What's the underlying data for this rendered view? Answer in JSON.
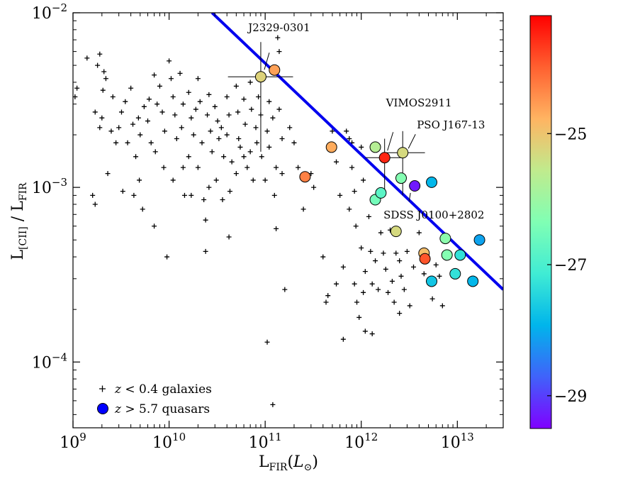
{
  "chart_data": {
    "type": "scatter",
    "xlabel": "L",
    "xlabel_sub": "FIR",
    "xlabel_unit_open": "(",
    "xlabel_unit": "L",
    "xlabel_unit_sub": "⊙",
    "xlabel_unit_close": ")",
    "ylabel": "L",
    "ylabel_sub": "[CII]",
    "ylabel_sep": " / L",
    "ylabel_sub2": "FIR",
    "x_scale": "log",
    "y_scale": "log",
    "xlim": [
      1000000000,
      30000000000000
    ],
    "ylim": [
      4.2e-05,
      0.01
    ],
    "x_ticks": [
      {
        "value": 1000000000,
        "base": "10",
        "exp": "9"
      },
      {
        "value": 10000000000,
        "base": "10",
        "exp": "10"
      },
      {
        "value": 100000000000,
        "base": "10",
        "exp": "11"
      },
      {
        "value": 1000000000000,
        "base": "10",
        "exp": "12"
      },
      {
        "value": 10000000000000,
        "base": "10",
        "exp": "13"
      }
    ],
    "y_ticks": [
      {
        "value": 0.0001,
        "base": "10",
        "exp": "−4"
      },
      {
        "value": 0.001,
        "base": "10",
        "exp": "−3"
      },
      {
        "value": 0.01,
        "base": "10",
        "exp": "−2"
      }
    ],
    "fit_line": {
      "color": "#0000ee",
      "points": [
        [
          28000000000,
          0.01
        ],
        [
          30000000000000,
          0.00026
        ]
      ]
    },
    "colorbar": {
      "min": -29.5,
      "max": -23.2,
      "ticks": [
        {
          "value": -25,
          "label": "−25"
        },
        {
          "value": -27,
          "label": "−27"
        },
        {
          "value": -29,
          "label": "−29"
        }
      ]
    },
    "legend": {
      "position": "lower-left",
      "entries": [
        {
          "marker": "plus",
          "z": "z",
          "rel": " < 0.4 galaxies"
        },
        {
          "marker": "circle",
          "z": "z",
          "rel": " > 5.7 quasars",
          "color": "#0000ff"
        }
      ]
    },
    "series": [
      {
        "name": "z < 0.4 galaxies",
        "marker": "plus",
        "points": [
          [
            1050000000.0,
            0.0033
          ],
          [
            1100000000.0,
            0.0037
          ],
          [
            1400000000.0,
            0.0055
          ],
          [
            1900000000.0,
            0.0058
          ],
          [
            1800000000.0,
            0.005
          ],
          [
            2100000000.0,
            0.0046
          ],
          [
            2200000000.0,
            0.0042
          ],
          [
            2050000000.0,
            0.0036
          ],
          [
            2000000000.0,
            0.0025
          ],
          [
            1900000000.0,
            0.0022
          ],
          [
            1700000000.0,
            0.0027
          ],
          [
            1600000000.0,
            0.0009
          ],
          [
            1700000000.0,
            0.0008
          ],
          [
            2600000000.0,
            0.0033
          ],
          [
            2500000000.0,
            0.0021
          ],
          [
            2800000000.0,
            0.0018
          ],
          [
            2300000000.0,
            0.0012
          ],
          [
            3200000000.0,
            0.0027
          ],
          [
            3000000000.0,
            0.0022
          ],
          [
            3300000000.0,
            0.00095
          ],
          [
            3500000000.0,
            0.0031
          ],
          [
            3700000000.0,
            0.0018
          ],
          [
            4000000000.0,
            0.0037
          ],
          [
            4200000000.0,
            0.0023
          ],
          [
            4500000000.0,
            0.0015
          ],
          [
            4300000000.0,
            0.0009
          ],
          [
            4800000000.0,
            0.0025
          ],
          [
            5500000000.0,
            0.0029
          ],
          [
            5000000000.0,
            0.002
          ],
          [
            4900000000.0,
            0.0011
          ],
          [
            5300000000.0,
            0.00075
          ],
          [
            6200000000.0,
            0.0032
          ],
          [
            6000000000.0,
            0.0024
          ],
          [
            6500000000.0,
            0.0018
          ],
          [
            7000000000.0,
            0.0044
          ],
          [
            7500000000.0,
            0.003
          ],
          [
            7200000000.0,
            0.0016
          ],
          [
            7000000000.0,
            0.0006
          ],
          [
            8000000000.0,
            0.0038
          ],
          [
            8500000000.0,
            0.0027
          ],
          [
            9000000000.0,
            0.0021
          ],
          [
            8800000000.0,
            0.0013
          ],
          [
            9500000000.0,
            0.0004
          ],
          [
            10000000000.0,
            0.0053
          ],
          [
            10500000000.0,
            0.0042
          ],
          [
            11000000000.0,
            0.0033
          ],
          [
            11500000000.0,
            0.0026
          ],
          [
            12000000000.0,
            0.0019
          ],
          [
            11000000000.0,
            0.0011
          ],
          [
            13000000000.0,
            0.0045
          ],
          [
            14000000000.0,
            0.003
          ],
          [
            13500000000.0,
            0.0022
          ],
          [
            14000000000.0,
            0.0013
          ],
          [
            14500000000.0,
            0.0009
          ],
          [
            16000000000.0,
            0.0035
          ],
          [
            17000000000.0,
            0.0025
          ],
          [
            18000000000.0,
            0.002
          ],
          [
            16000000000.0,
            0.0015
          ],
          [
            17000000000.0,
            0.0009
          ],
          [
            19000000000.0,
            0.0028
          ],
          [
            20000000000.0,
            0.0042
          ],
          [
            21000000000.0,
            0.0031
          ],
          [
            22000000000.0,
            0.0018
          ],
          [
            20000000000.0,
            0.0013
          ],
          [
            23000000000.0,
            0.00085
          ],
          [
            24000000000.0,
            0.00065
          ],
          [
            25000000000.0,
            0.0026
          ],
          [
            26000000000.0,
            0.0034
          ],
          [
            27000000000.0,
            0.0021
          ],
          [
            28000000000.0,
            0.0016
          ],
          [
            26000000000.0,
            0.001
          ],
          [
            24000000000.0,
            0.00043
          ],
          [
            30000000000.0,
            0.0029
          ],
          [
            32000000000.0,
            0.0024
          ],
          [
            33000000000.0,
            0.0019
          ],
          [
            31000000000.0,
            0.0011
          ],
          [
            35000000000.0,
            0.0022
          ],
          [
            37000000000.0,
            0.0015
          ],
          [
            36000000000.0,
            0.00085
          ],
          [
            40000000000.0,
            0.0033
          ],
          [
            42000000000.0,
            0.0026
          ],
          [
            40000000000.0,
            0.002
          ],
          [
            45000000000.0,
            0.0014
          ],
          [
            43000000000.0,
            0.00095
          ],
          [
            42000000000.0,
            0.00052
          ],
          [
            50000000000.0,
            0.0038
          ],
          [
            52000000000.0,
            0.0027
          ],
          [
            53000000000.0,
            0.0019
          ],
          [
            50000000000.0,
            0.0012
          ],
          [
            55000000000.0,
            0.0017
          ],
          [
            60000000000.0,
            0.0032
          ],
          [
            62000000000.0,
            0.0023
          ],
          [
            60000000000.0,
            0.0015
          ],
          [
            65000000000.0,
            0.0013
          ],
          [
            70000000000.0,
            0.004
          ],
          [
            72000000000.0,
            0.0028
          ],
          [
            70000000000.0,
            0.0016
          ],
          [
            75000000000.0,
            0.0011
          ],
          [
            80000000000.0,
            0.0022
          ],
          [
            82000000000.0,
            0.0018
          ],
          [
            85000000000.0,
            0.0033
          ],
          [
            90000000000.0,
            0.0026
          ],
          [
            92000000000.0,
            0.0015
          ],
          [
            100000000000.0,
            0.0011
          ],
          [
            105000000000.0,
            0.0021
          ],
          [
            110000000000.0,
            0.0031
          ],
          [
            110000000000.0,
            0.0017
          ],
          [
            120000000000.0,
            0.0025
          ],
          [
            125000000000.0,
            0.0009
          ],
          [
            130000000000.0,
            0.0013
          ],
          [
            130000000000.0,
            0.00058
          ],
          [
            135000000000.0,
            0.0072
          ],
          [
            140000000000.0,
            0.006
          ],
          [
            140000000000.0,
            0.0028
          ],
          [
            150000000000.0,
            0.0019
          ],
          [
            150000000000.0,
            0.0012
          ],
          [
            160000000000.0,
            0.00026
          ],
          [
            105000000000.0,
            0.00013
          ],
          [
            120000000000.0,
            5.7e-05
          ],
          [
            180000000000.0,
            0.0022
          ],
          [
            200000000000.0,
            0.0018
          ],
          [
            220000000000.0,
            0.0013
          ],
          [
            250000000000.0,
            0.00075
          ],
          [
            300000000000.0,
            0.0012
          ],
          [
            320000000000.0,
            0.001
          ],
          [
            400000000000.0,
            0.0004
          ],
          [
            450000000000.0,
            0.00024
          ],
          [
            430000000000.0,
            0.00022
          ],
          [
            500000000000.0,
            0.0021
          ],
          [
            550000000000.0,
            0.0014
          ],
          [
            600000000000.0,
            0.0009
          ],
          [
            550000000000.0,
            0.00028
          ],
          [
            650000000000.0,
            0.00035
          ],
          [
            650000000000.0,
            0.000135
          ],
          [
            700000000000.0,
            0.0021
          ],
          [
            750000000000.0,
            0.0019
          ],
          [
            800000000000.0,
            0.0018
          ],
          [
            800000000000.0,
            0.0013
          ],
          [
            750000000000.0,
            0.00075
          ],
          [
            850000000000.0,
            0.00095
          ],
          [
            880000000000.0,
            0.0006
          ],
          [
            850000000000.0,
            0.00028
          ],
          [
            900000000000.0,
            0.00022
          ],
          [
            950000000000.0,
            0.00018
          ],
          [
            1000000000000.0,
            0.0017
          ],
          [
            1050000000000.0,
            0.0011
          ],
          [
            1000000000000.0,
            0.00045
          ],
          [
            1100000000000.0,
            0.00033
          ],
          [
            1050000000000.0,
            0.00025
          ],
          [
            1100000000000.0,
            0.00015
          ],
          [
            1200000000000.0,
            0.00068
          ],
          [
            1250000000000.0,
            0.00043
          ],
          [
            1300000000000.0,
            0.00028
          ],
          [
            1300000000000.0,
            0.000145
          ],
          [
            1400000000000.0,
            0.00038
          ],
          [
            1500000000000.0,
            0.00026
          ],
          [
            1600000000000.0,
            0.00055
          ],
          [
            1700000000000.0,
            0.00042
          ],
          [
            1800000000000.0,
            0.00034
          ],
          [
            1900000000000.0,
            0.00025
          ],
          [
            2000000000000.0,
            0.00057
          ],
          [
            2100000000000.0,
            0.00029
          ],
          [
            2200000000000.0,
            0.00022
          ],
          [
            2300000000000.0,
            0.00042
          ],
          [
            2500000000000.0,
            0.00038
          ],
          [
            2600000000000.0,
            0.00031
          ],
          [
            2800000000000.0,
            0.00026
          ],
          [
            2500000000000.0,
            0.00019
          ],
          [
            3000000000000.0,
            0.00043
          ],
          [
            3200000000000.0,
            0.00021
          ],
          [
            3500000000000.0,
            0.00035
          ],
          [
            4000000000000.0,
            0.00055
          ],
          [
            4500000000000.0,
            0.00032
          ],
          [
            5000000000000.0,
            0.00029
          ],
          [
            5500000000000.0,
            0.00023
          ],
          [
            6000000000000.0,
            0.00036
          ],
          [
            6500000000000.0,
            0.00031
          ],
          [
            7000000000000.0,
            0.00021
          ]
        ]
      },
      {
        "name": "z > 5.7 quasars",
        "marker": "circle",
        "points": [
          {
            "x": 90000000000.0,
            "y": 0.0043,
            "mag": -25.2,
            "xerr": [
              41000000000.0,
              195000000000.0
            ],
            "yerr": [
              0.0016,
              0.0068
            ]
          },
          {
            "x": 125000000000.0,
            "y": 0.0047,
            "mag": -24.6
          },
          {
            "x": 260000000000.0,
            "y": 0.00115,
            "mag": -24.3
          },
          {
            "x": 490000000000.0,
            "y": 0.0017,
            "mag": -24.7
          },
          {
            "x": 1400000000000.0,
            "y": 0.0017,
            "mag": -25.7
          },
          {
            "x": 1750000000000.0,
            "y": 0.00148,
            "mag": -23.5,
            "xerr": [
              1100000000000.0,
              2800000000000.0
            ],
            "yerr": [
              0.00092,
              0.0019
            ]
          },
          {
            "x": 2700000000000.0,
            "y": 0.00158,
            "mag": -25.3,
            "xerr": [
              1700000000000.0,
              4600000000000.0
            ],
            "yerr": [
              0.0009,
              0.0021
            ]
          },
          {
            "x": 1400000000000.0,
            "y": 0.00085,
            "mag": -26.5
          },
          {
            "x": 1600000000000.0,
            "y": 0.00093,
            "mag": -26.8
          },
          {
            "x": 2600000000000.0,
            "y": 0.00113,
            "mag": -26.3
          },
          {
            "x": 3600000000000.0,
            "y": 0.00102,
            "mag": -29.3
          },
          {
            "x": 5400000000000.0,
            "y": 0.00107,
            "mag": -27.9
          },
          {
            "x": 2300000000000.0,
            "y": 0.00056,
            "mag": -25.3
          },
          {
            "x": 4500000000000.0,
            "y": 0.00042,
            "mag": -24.9
          },
          {
            "x": 4600000000000.0,
            "y": 0.00039,
            "mag": -23.9
          },
          {
            "x": 5400000000000.0,
            "y": 0.00029,
            "mag": -27.7
          },
          {
            "x": 7500000000000.0,
            "y": 0.00051,
            "mag": -26.2
          },
          {
            "x": 7800000000000.0,
            "y": 0.00041,
            "mag": -26.3
          },
          {
            "x": 9500000000000.0,
            "y": 0.00032,
            "mag": -27.3
          },
          {
            "x": 10700000000000.0,
            "y": 0.00041,
            "mag": -27.3
          },
          {
            "x": 14500000000000.0,
            "y": 0.00029,
            "mag": -27.9
          },
          {
            "x": 17000000000000.0,
            "y": 0.0005,
            "mag": -28.1
          }
        ]
      }
    ],
    "annotations": [
      {
        "text": "J2329-0301",
        "x": 90000000000.0,
        "y": 0.0043
      },
      {
        "text": "VIMOS2911",
        "x": 1750000000000.0,
        "y": 0.00148
      },
      {
        "text": "PSO J167-13",
        "x": 2700000000000.0,
        "y": 0.00158
      },
      {
        "text": "SDSS J0100+2802",
        "x": 3600000000000.0,
        "y": 0.00102
      }
    ]
  }
}
